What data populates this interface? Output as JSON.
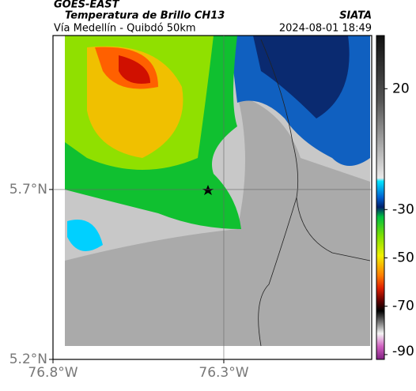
{
  "chart_data": {
    "type": "map",
    "title": "GOES-EAST",
    "subtitle": "Temperatura de Brillo CH13",
    "source": "SIATA",
    "route": "Vía Medellín - Quibdó 50km",
    "timestamp": "2024-08-01 18:49",
    "xlim": [
      -76.8,
      -75.867
    ],
    "ylim": [
      5.2,
      6.153
    ],
    "xticks": [
      {
        "value": -76.8,
        "label": "76.8°W"
      },
      {
        "value": -76.3,
        "label": "76.3°W"
      }
    ],
    "yticks": [
      {
        "value": 5.2,
        "label": "5.2°N"
      },
      {
        "value": 5.7,
        "label": "5.7°N"
      }
    ],
    "grid": true,
    "colorbar": {
      "lim": [
        42,
        -92
      ],
      "ticks": [
        20,
        -30,
        -50,
        -70,
        -90
      ]
    }
  }
}
